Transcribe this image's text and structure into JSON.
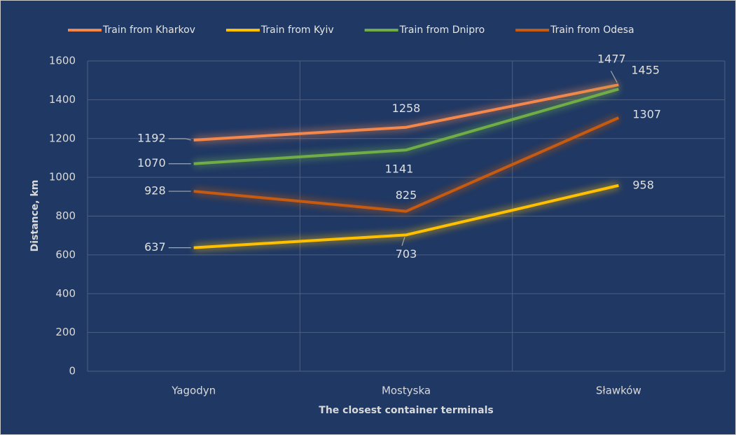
{
  "chart_data": {
    "type": "line",
    "x_label": "The closest container terminals",
    "y_label": "Distance, km",
    "categories": [
      "Yagodyn",
      "Mostyska",
      "Sławków"
    ],
    "series": [
      {
        "name": "Train from Kharkov",
        "color": "#f4874b",
        "values": [
          1192,
          1258,
          1477
        ]
      },
      {
        "name": "Train from Kyiv",
        "color": "#ffc000",
        "values": [
          637,
          703,
          958
        ]
      },
      {
        "name": "Train from Dnipro",
        "color": "#70ad47",
        "values": [
          1070,
          1141,
          1455
        ]
      },
      {
        "name": "Train from Odesa",
        "color": "#c55a11",
        "values": [
          928,
          825,
          1307
        ]
      }
    ],
    "ylim": [
      0,
      1600
    ],
    "yticks": [
      0,
      200,
      400,
      600,
      800,
      1000,
      1200,
      1400,
      1600
    ],
    "grid": true,
    "legend": "top"
  }
}
